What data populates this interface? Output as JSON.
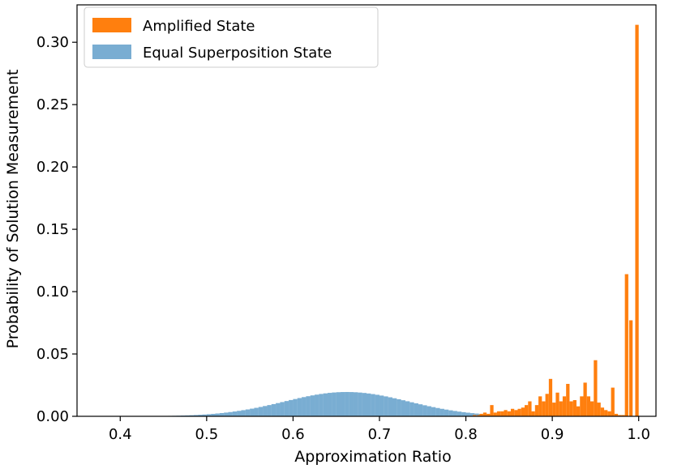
{
  "chart_data": {
    "type": "bar",
    "title": "",
    "xlabel": "Approximation Ratio",
    "ylabel": "Probability of Solution Measurement",
    "xlim": [
      0.35,
      1.02
    ],
    "ylim": [
      0.0,
      0.33
    ],
    "xticks": [
      "0.4",
      "0.5",
      "0.6",
      "0.7",
      "0.8",
      "0.9",
      "1.0"
    ],
    "yticks": [
      "0.00",
      "0.05",
      "0.10",
      "0.15",
      "0.20",
      "0.25",
      "0.30"
    ],
    "grid": false,
    "legend_position": "top-left",
    "colors": {
      "amplified": "#ff7f0e",
      "equal": "#1f77b4"
    },
    "series": [
      {
        "name": "Equal Superposition State",
        "kind": "gaussian-histogram",
        "x_range": [
          0.39,
          0.99
        ],
        "bins": 120,
        "peak_x": 0.662,
        "peak_y": 0.0195,
        "sigma": 0.072
      },
      {
        "name": "Amplified State",
        "kind": "bars",
        "bar_width": 0.004,
        "points": [
          [
            0.81,
            0.001
          ],
          [
            0.815,
            0.001
          ],
          [
            0.818,
            0.002
          ],
          [
            0.822,
            0.003
          ],
          [
            0.826,
            0.002
          ],
          [
            0.83,
            0.009
          ],
          [
            0.834,
            0.003
          ],
          [
            0.838,
            0.004
          ],
          [
            0.842,
            0.004
          ],
          [
            0.846,
            0.005
          ],
          [
            0.85,
            0.004
          ],
          [
            0.854,
            0.006
          ],
          [
            0.858,
            0.005
          ],
          [
            0.862,
            0.006
          ],
          [
            0.866,
            0.007
          ],
          [
            0.87,
            0.009
          ],
          [
            0.874,
            0.012
          ],
          [
            0.878,
            0.004
          ],
          [
            0.882,
            0.009
          ],
          [
            0.886,
            0.016
          ],
          [
            0.89,
            0.012
          ],
          [
            0.894,
            0.018
          ],
          [
            0.898,
            0.03
          ],
          [
            0.902,
            0.011
          ],
          [
            0.906,
            0.019
          ],
          [
            0.91,
            0.012
          ],
          [
            0.914,
            0.016
          ],
          [
            0.918,
            0.026
          ],
          [
            0.922,
            0.012
          ],
          [
            0.926,
            0.013
          ],
          [
            0.93,
            0.008
          ],
          [
            0.934,
            0.016
          ],
          [
            0.938,
            0.027
          ],
          [
            0.942,
            0.016
          ],
          [
            0.946,
            0.012
          ],
          [
            0.95,
            0.045
          ],
          [
            0.954,
            0.011
          ],
          [
            0.958,
            0.007
          ],
          [
            0.962,
            0.005
          ],
          [
            0.966,
            0.004
          ],
          [
            0.97,
            0.023
          ],
          [
            0.974,
            0.002
          ],
          [
            0.978,
            0.001
          ],
          [
            0.982,
            0.001
          ],
          [
            0.986,
            0.114
          ],
          [
            0.991,
            0.077
          ],
          [
            0.998,
            0.314
          ]
        ]
      }
    ]
  }
}
